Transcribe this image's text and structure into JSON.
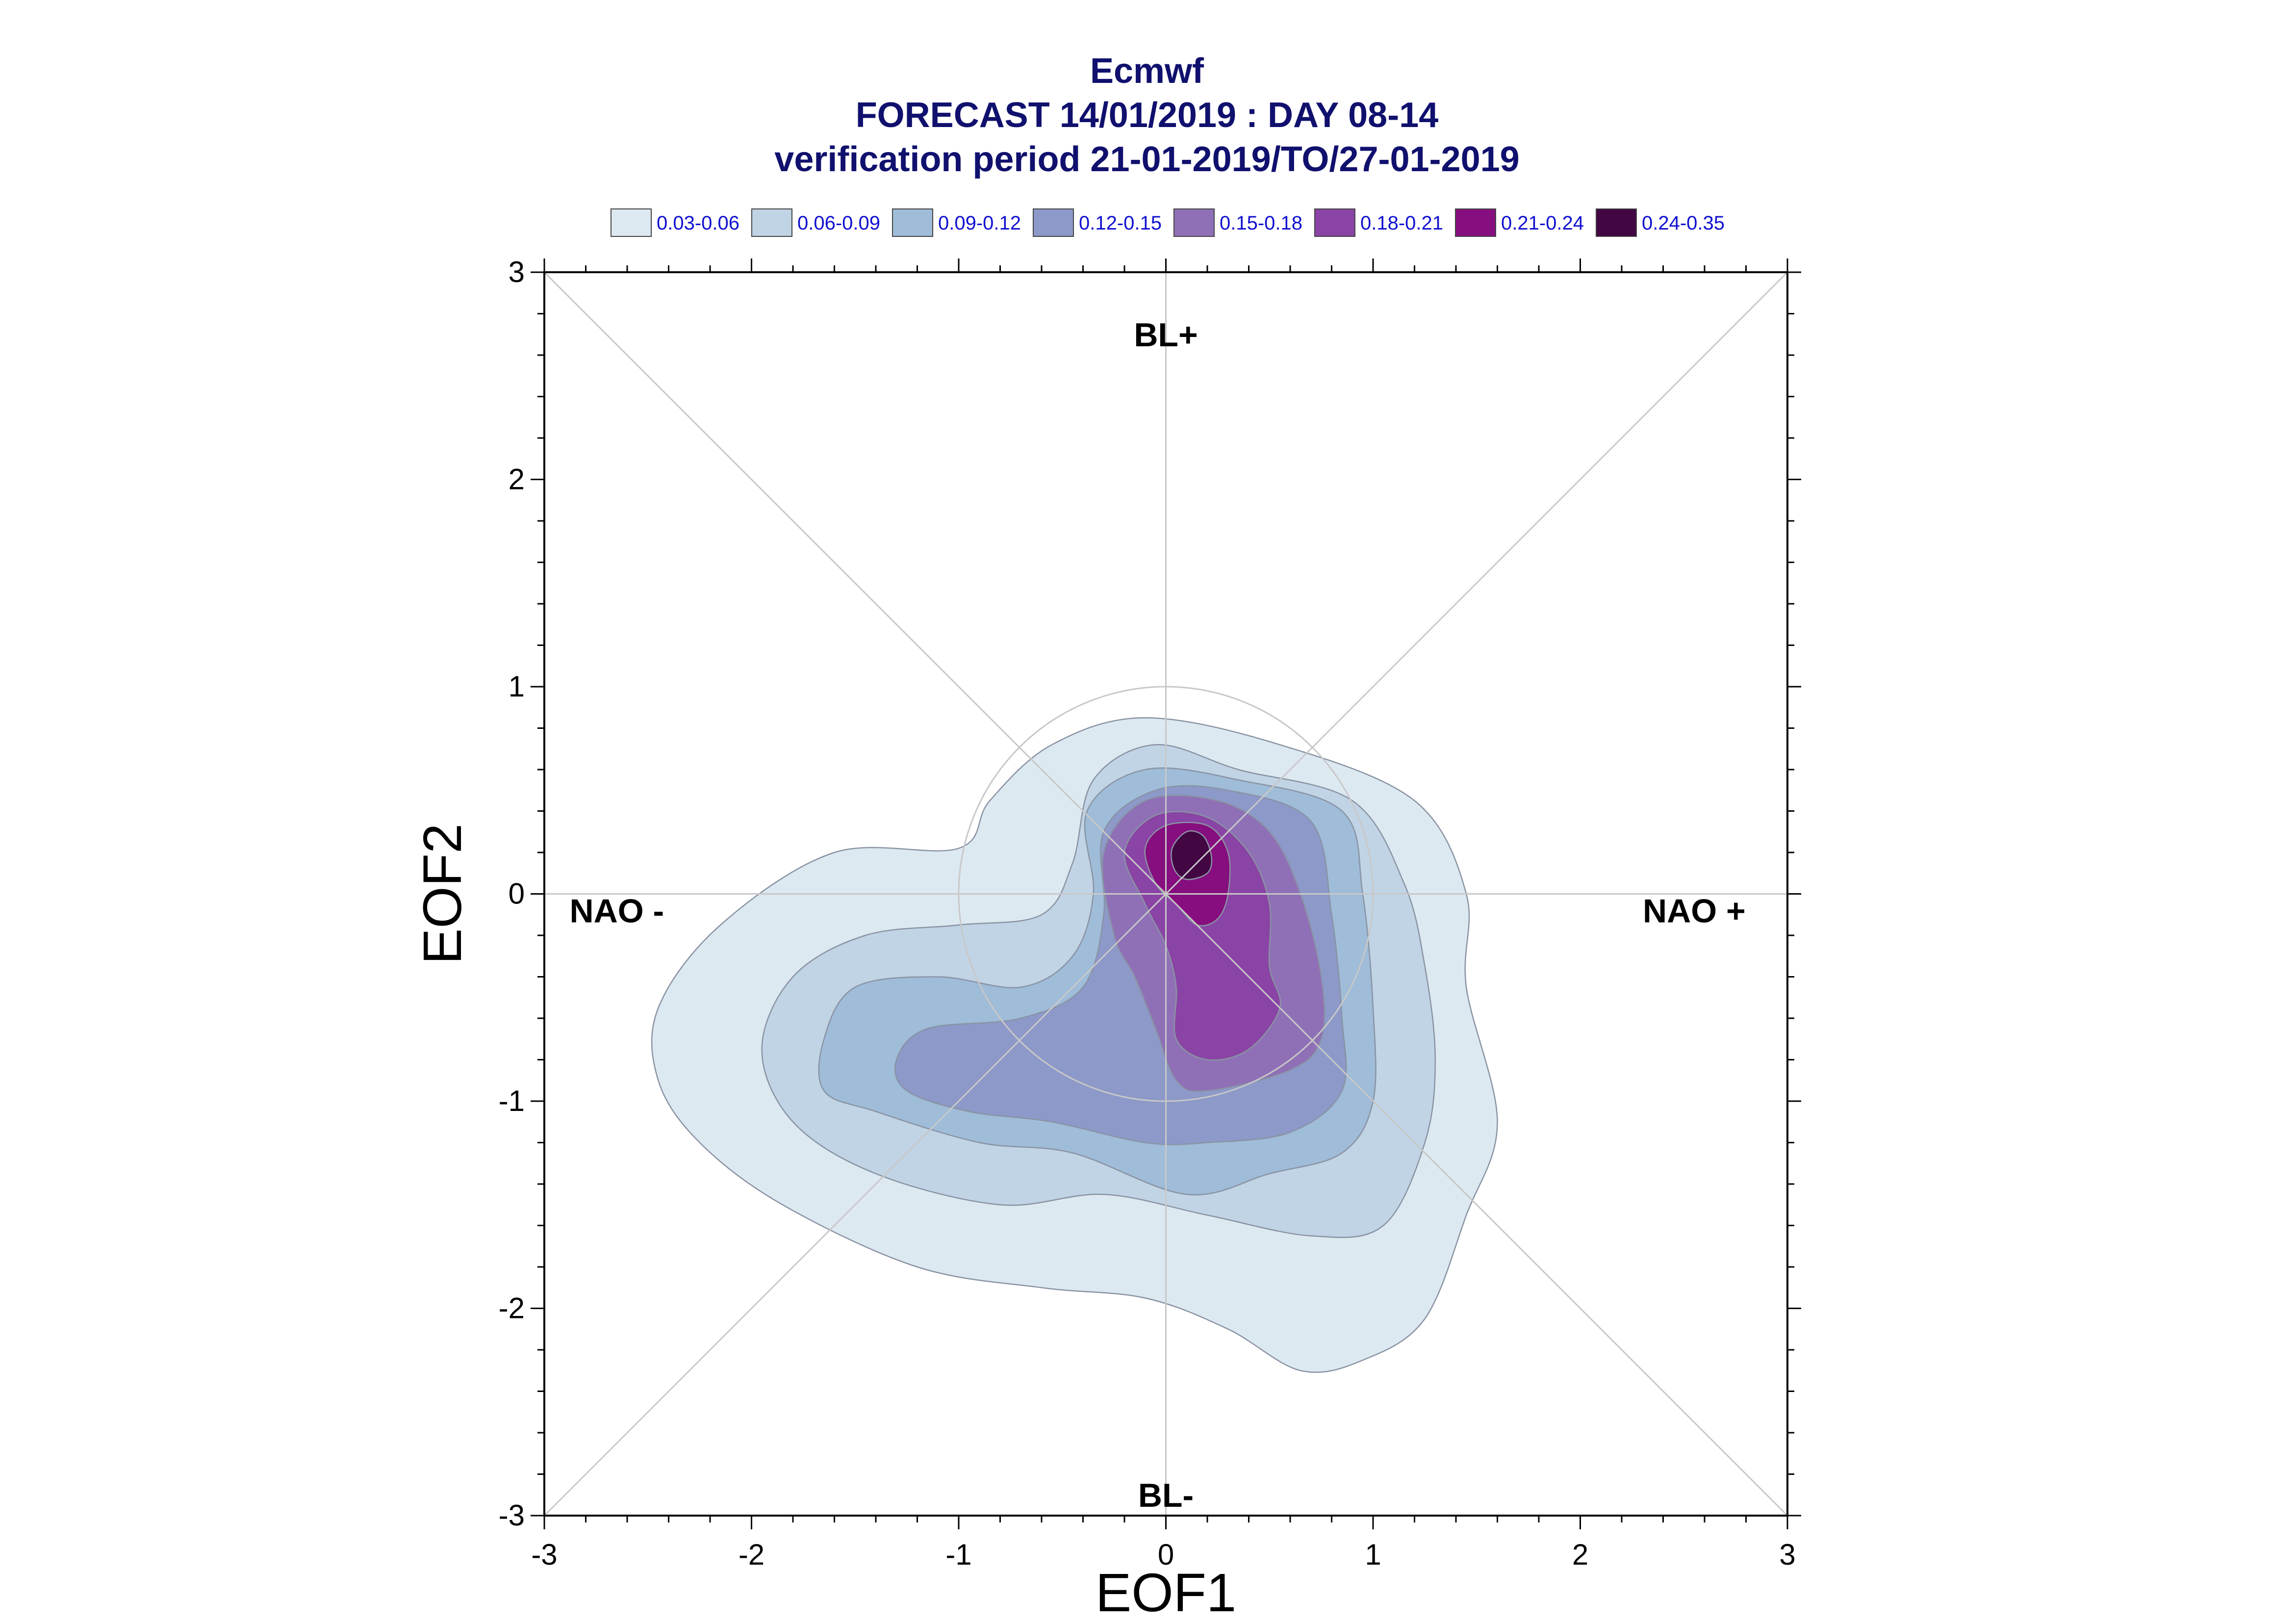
{
  "title": {
    "line1": "Ecmwf",
    "line2": "FORECAST 14/01/2019 : DAY 08-14",
    "line3": "verification period 21-01-2019/TO/27-01-2019"
  },
  "legend": [
    {
      "label": "0.03-0.06",
      "color": "#dde9f1"
    },
    {
      "label": "0.06-0.09",
      "color": "#c0d4e5"
    },
    {
      "label": "0.09-0.12",
      "color": "#9fbcd9"
    },
    {
      "label": "0.12-0.15",
      "color": "#8c99c9"
    },
    {
      "label": "0.15-0.18",
      "color": "#8f70b6"
    },
    {
      "label": "0.18-0.21",
      "color": "#8a44a5"
    },
    {
      "label": "0.21-0.24",
      "color": "#860e7f"
    },
    {
      "label": "0.24-0.35",
      "color": "#420643"
    }
  ],
  "chart_data": {
    "type": "contour",
    "xlabel": "EOF1",
    "ylabel": "EOF2",
    "xlim": [
      -3,
      3
    ],
    "ylim": [
      -3,
      3
    ],
    "xticks": [
      "-3",
      "-2",
      "-1",
      "0",
      "1",
      "2",
      "3"
    ],
    "yticks": [
      "-3",
      "-2",
      "-1",
      "0",
      "1",
      "2",
      "3"
    ],
    "regime_labels": [
      {
        "text": "BL+",
        "x": 0,
        "y": 2.7
      },
      {
        "text": "BL-",
        "x": 0,
        "y": -2.9
      },
      {
        "text": "NAO -",
        "x": -2.65,
        "y": -0.08
      },
      {
        "text": "NAO +",
        "x": 2.55,
        "y": -0.08
      }
    ],
    "reference_circle": {
      "cx": 0,
      "cy": 0,
      "r": 1
    },
    "contours": [
      {
        "level": "0.03-0.06",
        "color": "#dde9f1",
        "points": [
          [
            -2.45,
            -0.55
          ],
          [
            -2.15,
            -0.15
          ],
          [
            -1.6,
            0.2
          ],
          [
            -1.0,
            0.22
          ],
          [
            -0.85,
            0.45
          ],
          [
            -0.55,
            0.72
          ],
          [
            -0.1,
            0.85
          ],
          [
            0.55,
            0.72
          ],
          [
            1.2,
            0.45
          ],
          [
            1.45,
            0.0
          ],
          [
            1.45,
            -0.45
          ],
          [
            1.6,
            -1.1
          ],
          [
            1.45,
            -1.55
          ],
          [
            1.25,
            -2.05
          ],
          [
            0.95,
            -2.25
          ],
          [
            0.65,
            -2.3
          ],
          [
            0.3,
            -2.1
          ],
          [
            -0.1,
            -1.95
          ],
          [
            -0.6,
            -1.9
          ],
          [
            -1.2,
            -1.8
          ],
          [
            -1.85,
            -1.5
          ],
          [
            -2.25,
            -1.2
          ],
          [
            -2.45,
            -0.9
          ]
        ]
      },
      {
        "level": "0.06-0.09",
        "color": "#c0d4e5",
        "points": [
          [
            -1.95,
            -0.75
          ],
          [
            -1.8,
            -0.4
          ],
          [
            -1.45,
            -0.2
          ],
          [
            -1.0,
            -0.15
          ],
          [
            -0.6,
            -0.1
          ],
          [
            -0.45,
            0.15
          ],
          [
            -0.35,
            0.55
          ],
          [
            -0.05,
            0.72
          ],
          [
            0.35,
            0.6
          ],
          [
            0.9,
            0.45
          ],
          [
            1.15,
            0.05
          ],
          [
            1.25,
            -0.35
          ],
          [
            1.3,
            -0.8
          ],
          [
            1.25,
            -1.2
          ],
          [
            1.05,
            -1.6
          ],
          [
            0.7,
            -1.65
          ],
          [
            0.2,
            -1.55
          ],
          [
            -0.3,
            -1.45
          ],
          [
            -0.8,
            -1.5
          ],
          [
            -1.4,
            -1.35
          ],
          [
            -1.8,
            -1.1
          ]
        ]
      },
      {
        "level": "0.09-0.12",
        "color": "#9fbcd9",
        "points": [
          [
            -1.65,
            -0.7
          ],
          [
            -1.5,
            -0.45
          ],
          [
            -1.1,
            -0.4
          ],
          [
            -0.7,
            -0.45
          ],
          [
            -0.45,
            -0.3
          ],
          [
            -0.35,
            0.0
          ],
          [
            -0.38,
            0.4
          ],
          [
            -0.1,
            0.6
          ],
          [
            0.35,
            0.55
          ],
          [
            0.85,
            0.4
          ],
          [
            0.95,
            0.0
          ],
          [
            1.0,
            -0.55
          ],
          [
            1.0,
            -1.0
          ],
          [
            0.85,
            -1.25
          ],
          [
            0.5,
            -1.35
          ],
          [
            0.1,
            -1.45
          ],
          [
            -0.45,
            -1.25
          ],
          [
            -0.9,
            -1.2
          ],
          [
            -1.4,
            -1.05
          ],
          [
            -1.65,
            -0.95
          ]
        ]
      },
      {
        "level": "0.12-0.15",
        "color": "#8c99c9",
        "points": [
          [
            -1.3,
            -0.8
          ],
          [
            -1.15,
            -0.65
          ],
          [
            -0.7,
            -0.6
          ],
          [
            -0.4,
            -0.45
          ],
          [
            -0.3,
            -0.1
          ],
          [
            -0.3,
            0.3
          ],
          [
            -0.05,
            0.5
          ],
          [
            0.3,
            0.5
          ],
          [
            0.7,
            0.35
          ],
          [
            0.8,
            -0.1
          ],
          [
            0.85,
            -0.6
          ],
          [
            0.85,
            -0.95
          ],
          [
            0.6,
            -1.15
          ],
          [
            0.2,
            -1.2
          ],
          [
            -0.1,
            -1.2
          ],
          [
            -0.55,
            -1.1
          ],
          [
            -0.95,
            -1.05
          ],
          [
            -1.25,
            -0.95
          ]
        ]
      },
      {
        "level": "0.15-0.18",
        "color": "#8f70b6",
        "points": [
          [
            -0.3,
            0.2
          ],
          [
            -0.1,
            0.45
          ],
          [
            0.25,
            0.45
          ],
          [
            0.5,
            0.3
          ],
          [
            0.65,
            0.0
          ],
          [
            0.75,
            -0.4
          ],
          [
            0.75,
            -0.7
          ],
          [
            0.6,
            -0.85
          ],
          [
            0.2,
            -0.95
          ],
          [
            0.05,
            -0.9
          ],
          [
            -0.05,
            -0.65
          ],
          [
            -0.15,
            -0.4
          ],
          [
            -0.25,
            -0.2
          ]
        ]
      },
      {
        "level": "0.18-0.21",
        "color": "#8a44a5",
        "points": [
          [
            -0.2,
            0.2
          ],
          [
            -0.05,
            0.38
          ],
          [
            0.2,
            0.37
          ],
          [
            0.4,
            0.2
          ],
          [
            0.5,
            -0.05
          ],
          [
            0.5,
            -0.35
          ],
          [
            0.55,
            -0.55
          ],
          [
            0.4,
            -0.75
          ],
          [
            0.2,
            -0.8
          ],
          [
            0.05,
            -0.7
          ],
          [
            0.05,
            -0.45
          ],
          [
            0.0,
            -0.25
          ],
          [
            -0.1,
            -0.05
          ]
        ]
      },
      {
        "level": "0.21-0.24",
        "color": "#860e7f",
        "points": [
          [
            -0.1,
            0.22
          ],
          [
            0.0,
            0.33
          ],
          [
            0.2,
            0.33
          ],
          [
            0.3,
            0.2
          ],
          [
            0.3,
            0.0
          ],
          [
            0.25,
            -0.12
          ],
          [
            0.15,
            -0.15
          ],
          [
            0.05,
            -0.05
          ],
          [
            -0.05,
            0.05
          ]
        ]
      },
      {
        "level": "0.24-0.35",
        "color": "#420643",
        "points": [
          [
            0.03,
            0.22
          ],
          [
            0.1,
            0.3
          ],
          [
            0.18,
            0.28
          ],
          [
            0.22,
            0.18
          ],
          [
            0.2,
            0.1
          ],
          [
            0.1,
            0.07
          ],
          [
            0.04,
            0.12
          ]
        ]
      }
    ]
  }
}
